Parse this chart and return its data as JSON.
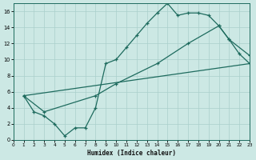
{
  "xlabel": "Humidex (Indice chaleur)",
  "bg_color": "#cce8e4",
  "line_color": "#1e6b5e",
  "grid_color": "#aacfcb",
  "xlim": [
    0,
    23
  ],
  "ylim": [
    0,
    17
  ],
  "xticks": [
    0,
    1,
    2,
    3,
    4,
    5,
    6,
    7,
    8,
    9,
    10,
    11,
    12,
    13,
    14,
    15,
    16,
    17,
    18,
    19,
    20,
    21,
    22,
    23
  ],
  "yticks": [
    0,
    2,
    4,
    6,
    8,
    10,
    12,
    14,
    16
  ],
  "curve1_x": [
    1,
    2,
    3,
    4,
    5,
    6,
    7,
    8,
    9,
    10,
    11,
    12,
    13,
    14,
    15,
    16,
    17,
    18,
    19,
    20,
    21,
    22,
    23
  ],
  "curve1_y": [
    5.5,
    3.5,
    3.0,
    2.0,
    0.5,
    1.5,
    1.5,
    4.0,
    9.5,
    10.0,
    11.5,
    13.0,
    14.5,
    15.8,
    17.0,
    15.5,
    15.8,
    15.8,
    15.5,
    14.2,
    12.5,
    10.7,
    9.5
  ],
  "curve2_x": [
    1,
    3,
    8,
    10,
    14,
    17,
    20,
    21,
    23
  ],
  "curve2_y": [
    5.5,
    3.5,
    5.5,
    7.0,
    9.5,
    12.0,
    14.2,
    12.5,
    10.5
  ],
  "curve3_x": [
    1,
    23
  ],
  "curve3_y": [
    5.5,
    9.5
  ]
}
